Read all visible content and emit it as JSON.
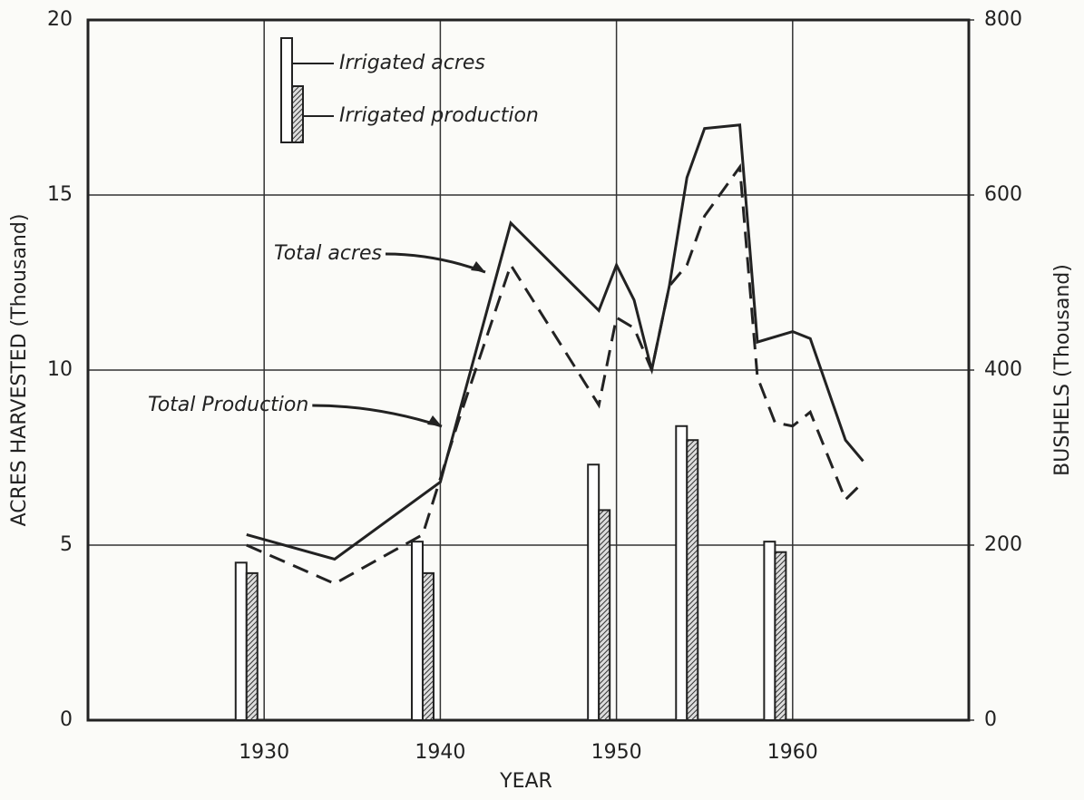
{
  "chart_data": {
    "type": "combo",
    "xlabel": "YEAR",
    "ylabel": "ACRES HARVESTED (Thousand)",
    "y2label": "BUSHELS (Thousand)",
    "xlim": [
      1920,
      1970
    ],
    "xticks": [
      1930,
      1940,
      1950,
      1960
    ],
    "ylim": [
      0,
      20
    ],
    "yticks": [
      0,
      5,
      10,
      15,
      20
    ],
    "y2lim": [
      0,
      800
    ],
    "y2ticks": [
      0,
      200,
      400,
      600,
      800
    ],
    "grid": true,
    "series": [
      {
        "name": "Irrigated acres",
        "type": "bar",
        "color": "#ffffff",
        "x": [
          1929,
          1939,
          1949,
          1954,
          1959
        ],
        "values": [
          4.5,
          5.1,
          7.3,
          8.4,
          5.1
        ]
      },
      {
        "name": "Irrigated production",
        "type": "bar",
        "axis": "y2",
        "color": "#333333",
        "x": [
          1929,
          1939,
          1949,
          1954,
          1959
        ],
        "values": [
          168,
          168,
          240,
          320,
          192
        ]
      },
      {
        "name": "Total acres",
        "type": "line",
        "color": "#222222",
        "x": [
          1929,
          1934,
          1940,
          1944,
          1949,
          1950,
          1951,
          1952,
          1953,
          1954,
          1955,
          1957,
          1958,
          1960,
          1961,
          1963,
          1964
        ],
        "values": [
          5.3,
          4.6,
          6.8,
          14.2,
          11.7,
          13.0,
          12.0,
          10.0,
          12.4,
          15.5,
          16.9,
          17.0,
          10.8,
          11.1,
          10.9,
          8.0,
          7.4
        ]
      },
      {
        "name": "Total Production",
        "type": "line",
        "axis": "y2",
        "dashed": true,
        "color": "#222222",
        "x": [
          1929,
          1934,
          1939,
          1941,
          1944,
          1949,
          1950,
          1951,
          1952,
          1953,
          1954,
          1955,
          1957,
          1958,
          1959,
          1960,
          1961,
          1963,
          1964
        ],
        "values": [
          200,
          156,
          212,
          340,
          520,
          360,
          460,
          448,
          400,
          496,
          520,
          576,
          632,
          392,
          340,
          336,
          352,
          252,
          272
        ]
      }
    ]
  }
}
